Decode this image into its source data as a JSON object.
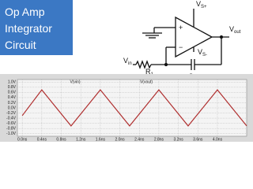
{
  "title": [
    "Op Amp",
    "Integrator",
    "Circuit"
  ],
  "circuit": {
    "vsp": {
      "main": "V",
      "sub": "S+"
    },
    "vsm": {
      "main": "V",
      "sub": "S-"
    },
    "vout": {
      "main": "V",
      "sub": "out"
    },
    "vin": {
      "main": "V",
      "sub": "in"
    },
    "r1": {
      "main": "R",
      "sub": "1"
    },
    "cfb": {
      "main": "C",
      "sub": "fb"
    },
    "plus": "+",
    "minus": "−"
  },
  "chart_data": {
    "type": "line",
    "trace_labels": [
      "V(vin)",
      "V(vout)"
    ],
    "x": [
      0,
      0.4,
      1.0,
      1.6,
      2.2,
      2.8,
      3.4,
      4.0,
      4.6
    ],
    "series": [
      {
        "name": "V(vout)",
        "color": "#b03030",
        "values": [
          -0.3,
          0.7,
          -0.7,
          0.7,
          -0.7,
          0.7,
          -0.7,
          0.7,
          -0.7
        ]
      }
    ],
    "xlim": [
      -0.1,
      4.6
    ],
    "xticks": [
      {
        "value": 0,
        "label": "0.0ns"
      },
      {
        "value": 0.4,
        "label": "0.4ns"
      },
      {
        "value": 0.8,
        "label": "0.8ns"
      },
      {
        "value": 1.2,
        "label": "1.2ns"
      },
      {
        "value": 1.6,
        "label": "1.6ns"
      },
      {
        "value": 2.0,
        "label": "2.0ns"
      },
      {
        "value": 2.4,
        "label": "2.4ns"
      },
      {
        "value": 2.8,
        "label": "2.8ns"
      },
      {
        "value": 3.2,
        "label": "3.2ns"
      },
      {
        "value": 3.6,
        "label": "3.6ns"
      },
      {
        "value": 4.0,
        "label": "4.0ns"
      }
    ],
    "ylim": [
      -1.1,
      1.1
    ],
    "yticks": [
      {
        "value": 1.0,
        "label": "1.0V"
      },
      {
        "value": 0.8,
        "label": "0.8V"
      },
      {
        "value": 0.6,
        "label": "0.6V"
      },
      {
        "value": 0.4,
        "label": "0.4V"
      },
      {
        "value": 0.2,
        "label": "0.2V"
      },
      {
        "value": 0.0,
        "label": "0.0V"
      },
      {
        "value": -0.2,
        "label": "-0.2V"
      },
      {
        "value": -0.4,
        "label": "-0.4V"
      },
      {
        "value": -0.6,
        "label": "-0.6V"
      },
      {
        "value": -0.8,
        "label": "-0.8V"
      },
      {
        "value": -1.0,
        "label": "-1.0V"
      }
    ],
    "grid": true
  }
}
